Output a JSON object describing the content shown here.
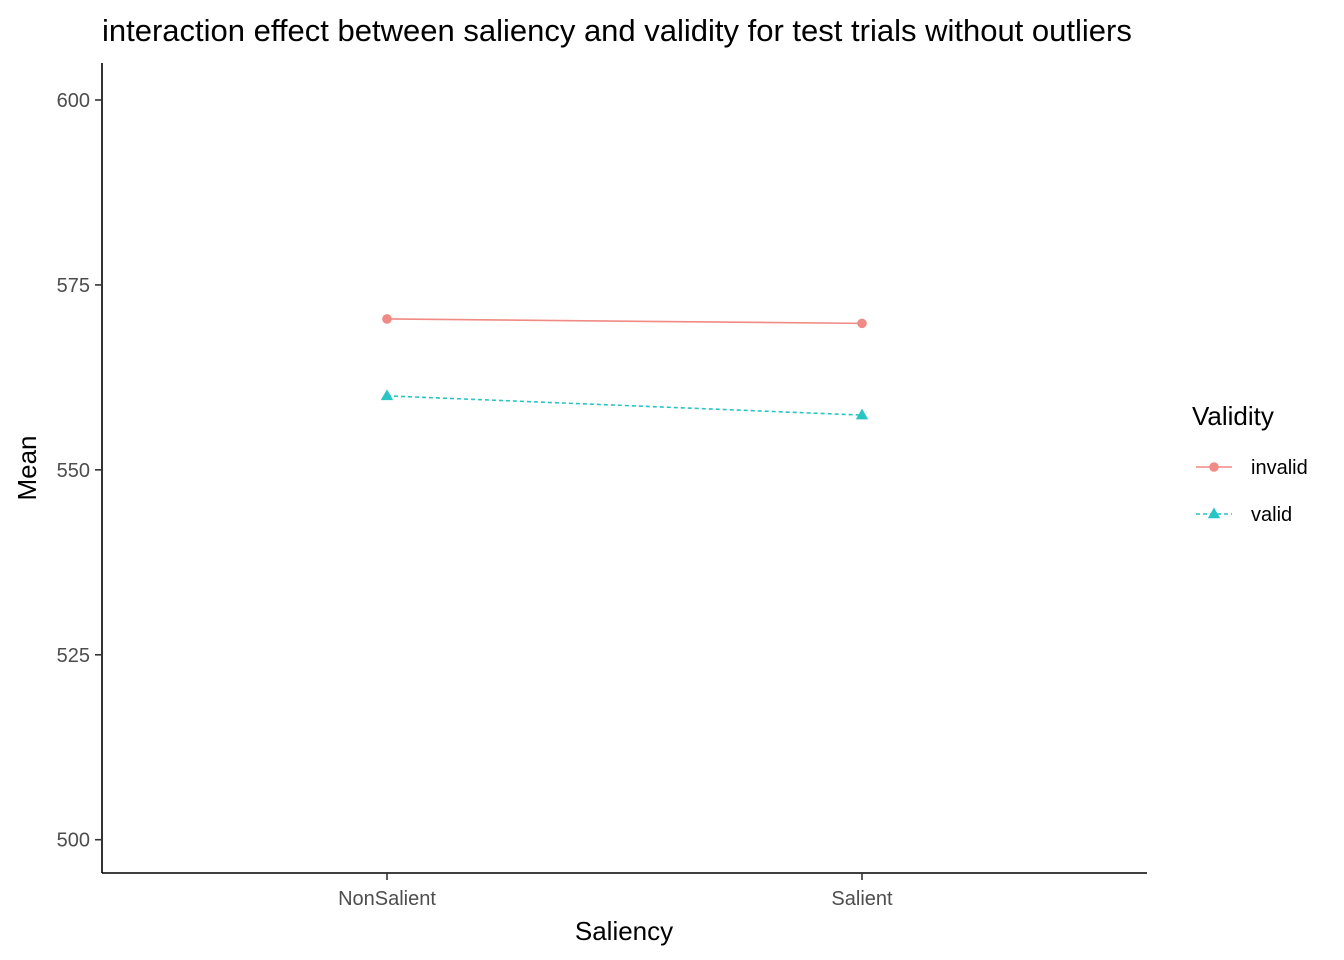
{
  "chart_data": {
    "type": "line",
    "title": "interaction effect between saliency and validity for test trials without outliers",
    "xlabel": "Saliency",
    "ylabel": "Mean",
    "categories": [
      "NonSalient",
      "Salient"
    ],
    "ylim": [
      495.5,
      605
    ],
    "yticks": [
      500,
      525,
      550,
      575,
      600
    ],
    "grid": false,
    "legend": {
      "title": "Validity",
      "position": "right"
    },
    "series": [
      {
        "name": "invalid",
        "values": [
          570.4,
          569.8
        ],
        "color": "#f08a84",
        "marker": "circle",
        "line_style": "solid"
      },
      {
        "name": "valid",
        "values": [
          560.0,
          557.4
        ],
        "color": "#29c4c4",
        "marker": "triangle",
        "line_style": "dashed"
      }
    ]
  }
}
